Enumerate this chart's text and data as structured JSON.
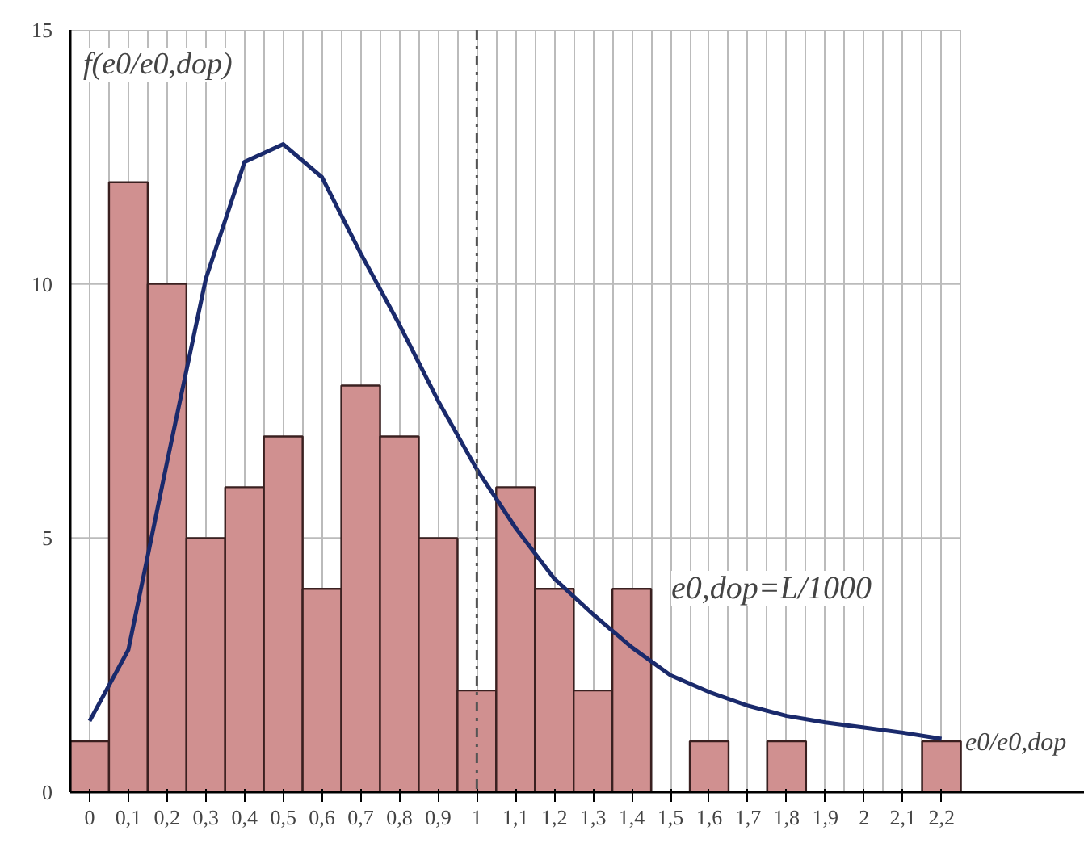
{
  "chart_data": {
    "type": "bar",
    "xlabel": "e0/e0,dop",
    "ylabel": "f(e0/e0,dop)",
    "categories": [
      "0",
      "0,1",
      "0,2",
      "0,3",
      "0,4",
      "0,5",
      "0,6",
      "0,7",
      "0,8",
      "0,9",
      "1",
      "1,1",
      "1,2",
      "1,3",
      "1,4",
      "1,5",
      "1,6",
      "1,7",
      "1,8",
      "1,9",
      "2",
      "2,1",
      "2,2"
    ],
    "series": [
      {
        "color": "#d09090",
        "values": [
          1,
          12,
          10,
          5,
          6,
          7,
          4,
          8,
          7,
          5,
          2,
          6,
          4,
          2,
          4,
          0,
          1,
          0,
          1,
          0,
          0,
          0,
          1
        ]
      },
      {
        "type": "line",
        "color": "#1a2a6c",
        "values": [
          1.4,
          2.8,
          6.5,
          10.1,
          12.4,
          12.75,
          12.1,
          10.6,
          9.2,
          7.7,
          6.35,
          5.2,
          4.2,
          3.5,
          2.85,
          2.3,
          1.97,
          1.7,
          1.5,
          1.37,
          1.27,
          1.17,
          1.05
        ]
      }
    ],
    "ylim": [
      0,
      15
    ],
    "yticks": [
      0,
      5,
      10,
      15
    ],
    "grid": true,
    "ref_lines": [
      {
        "axis": "x",
        "value": "1",
        "color": "#555555",
        "line_style": "dashdot"
      }
    ],
    "annotations": [
      "e0,dop=L/1000"
    ]
  }
}
